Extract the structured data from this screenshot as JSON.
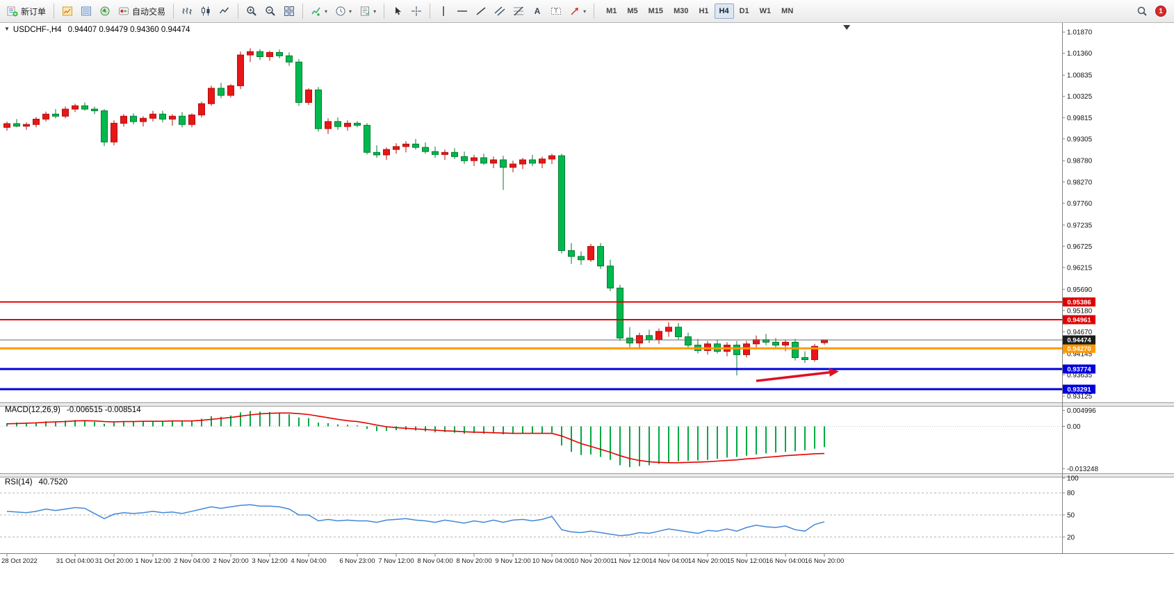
{
  "toolbar": {
    "new_order_label": "新订单",
    "auto_trading_label": "自动交易",
    "timeframes": [
      "M1",
      "M5",
      "M15",
      "M30",
      "H1",
      "H4",
      "D1",
      "W1",
      "MN"
    ],
    "active_timeframe": "H4",
    "notification_badge": "1"
  },
  "chart": {
    "symbol_title": "USDCHF-,H4",
    "ohlc_text": "0.94407 0.94479 0.94360 0.94474",
    "macd_name": "MACD(12,26,9)",
    "macd_values": "-0.006515 -0.008514",
    "rsi_name": "RSI(14)",
    "rsi_value": "40.7520"
  },
  "chart_data": {
    "type": "candlestick",
    "symbol": "USDCHF-",
    "timeframe": "H4",
    "legend_position": "top-left",
    "grid": false,
    "colors": {
      "bull": "#e81717",
      "bull_border": "#b30d0d",
      "bear": "#00b94e",
      "bear_border": "#007a30",
      "macd_hist": "#00a843",
      "macd_signal": "#e60000",
      "rsi_line": "#4187d6",
      "hline_red": "#e00000",
      "hline_orange": "#ff9900",
      "hline_blue": "#0000dd",
      "price_line": "#666666",
      "arrow": "#e01020"
    },
    "price_range": {
      "top": 1.0204,
      "bottom": 0.9299
    },
    "price_axis_labels": [
      "1.01870",
      "1.01360",
      "1.00835",
      "1.00325",
      "0.99815",
      "0.99305",
      "0.98780",
      "0.98270",
      "0.97760",
      "0.97235",
      "0.96725",
      "0.96215",
      "0.95690",
      "0.95180",
      "0.94670",
      "0.94145",
      "0.93635",
      "0.93125"
    ],
    "candles_ohlc": [
      [
        0.9958,
        0.9972,
        0.995,
        0.9967
      ],
      [
        0.9967,
        0.9978,
        0.9958,
        0.9961
      ],
      [
        0.9961,
        0.997,
        0.9952,
        0.9965
      ],
      [
        0.9965,
        0.9983,
        0.9958,
        0.9978
      ],
      [
        0.9978,
        0.9996,
        0.9972,
        0.999
      ],
      [
        0.999,
        1.0002,
        0.998,
        0.9985
      ],
      [
        0.9985,
        1.0008,
        0.998,
        1.0002
      ],
      [
        1.0002,
        1.0015,
        0.9995,
        1.001
      ],
      [
        1.001,
        1.0018,
        0.9998,
        1.0002
      ],
      [
        1.0002,
        1.0008,
        0.999,
        0.9998
      ],
      [
        0.9998,
        1.0002,
        0.9913,
        0.9923
      ],
      [
        0.9923,
        0.9975,
        0.9915,
        0.9968
      ],
      [
        0.9968,
        0.999,
        0.996,
        0.9985
      ],
      [
        0.9985,
        0.9992,
        0.9965,
        0.9972
      ],
      [
        0.9972,
        0.9985,
        0.996,
        0.998
      ],
      [
        0.998,
        0.9998,
        0.9972,
        0.999
      ],
      [
        0.999,
        0.9998,
        0.997,
        0.9978
      ],
      [
        0.9978,
        0.999,
        0.9962,
        0.9985
      ],
      [
        0.9985,
        0.9995,
        0.9958,
        0.9965
      ],
      [
        0.9965,
        0.9992,
        0.9958,
        0.9988
      ],
      [
        0.9988,
        1.002,
        0.9982,
        1.0015
      ],
      [
        1.0015,
        1.0058,
        1.001,
        1.0052
      ],
      [
        1.0052,
        1.0065,
        1.0028,
        1.0035
      ],
      [
        1.0035,
        1.0062,
        1.003,
        1.0058
      ],
      [
        1.0058,
        1.014,
        1.005,
        1.0132
      ],
      [
        1.0132,
        1.0148,
        1.0115,
        1.014
      ],
      [
        1.014,
        1.0146,
        1.012,
        1.0128
      ],
      [
        1.0128,
        1.0142,
        1.0118,
        1.0138
      ],
      [
        1.0138,
        1.0145,
        1.0124,
        1.013
      ],
      [
        1.013,
        1.0138,
        1.0106,
        1.0115
      ],
      [
        1.0115,
        1.0122,
        1.001,
        1.0018
      ],
      [
        1.0018,
        1.0052,
        1.0012,
        1.0048
      ],
      [
        1.0048,
        1.0055,
        0.9948,
        0.9955
      ],
      [
        0.9955,
        0.998,
        0.9942,
        0.9972
      ],
      [
        0.9972,
        0.9982,
        0.9952,
        0.996
      ],
      [
        0.996,
        0.9975,
        0.995,
        0.9968
      ],
      [
        0.9968,
        0.9973,
        0.9958,
        0.9963
      ],
      [
        0.9963,
        0.9968,
        0.9893,
        0.9898
      ],
      [
        0.9898,
        0.9915,
        0.9885,
        0.9892
      ],
      [
        0.9892,
        0.991,
        0.988,
        0.9905
      ],
      [
        0.9905,
        0.992,
        0.9895,
        0.9912
      ],
      [
        0.9912,
        0.9925,
        0.9898,
        0.9918
      ],
      [
        0.9918,
        0.993,
        0.9905,
        0.991
      ],
      [
        0.991,
        0.9922,
        0.9895,
        0.99
      ],
      [
        0.99,
        0.9912,
        0.9885,
        0.9893
      ],
      [
        0.9893,
        0.9905,
        0.988,
        0.9898
      ],
      [
        0.9898,
        0.9908,
        0.9882,
        0.9888
      ],
      [
        0.9888,
        0.99,
        0.987,
        0.9878
      ],
      [
        0.9878,
        0.9892,
        0.9865,
        0.9885
      ],
      [
        0.9885,
        0.9895,
        0.9868,
        0.9872
      ],
      [
        0.9872,
        0.9888,
        0.986,
        0.988
      ],
      [
        0.988,
        0.989,
        0.9808,
        0.9862
      ],
      [
        0.9862,
        0.9878,
        0.985,
        0.987
      ],
      [
        0.987,
        0.9885,
        0.9858,
        0.988
      ],
      [
        0.988,
        0.9892,
        0.9865,
        0.9872
      ],
      [
        0.9872,
        0.9888,
        0.986,
        0.9882
      ],
      [
        0.9882,
        0.9895,
        0.987,
        0.989
      ],
      [
        0.989,
        0.9895,
        0.9655,
        0.9662
      ],
      [
        0.9662,
        0.968,
        0.963,
        0.9648
      ],
      [
        0.9648,
        0.966,
        0.9628,
        0.964
      ],
      [
        0.964,
        0.9678,
        0.9635,
        0.9672
      ],
      [
        0.9672,
        0.968,
        0.9618,
        0.9625
      ],
      [
        0.9625,
        0.964,
        0.9565,
        0.9572
      ],
      [
        0.9572,
        0.958,
        0.9445,
        0.9452
      ],
      [
        0.9452,
        0.9478,
        0.943,
        0.944
      ],
      [
        0.944,
        0.9465,
        0.9425,
        0.9458
      ],
      [
        0.9458,
        0.9472,
        0.944,
        0.9448
      ],
      [
        0.9448,
        0.9475,
        0.9438,
        0.9468
      ],
      [
        0.9468,
        0.949,
        0.9455,
        0.9478
      ],
      [
        0.9478,
        0.9488,
        0.9448,
        0.9455
      ],
      [
        0.9455,
        0.9465,
        0.9428,
        0.9435
      ],
      [
        0.9435,
        0.945,
        0.9415,
        0.9422
      ],
      [
        0.9422,
        0.9445,
        0.9412,
        0.9438
      ],
      [
        0.9438,
        0.9448,
        0.9415,
        0.942
      ],
      [
        0.942,
        0.9442,
        0.9408,
        0.9435
      ],
      [
        0.9435,
        0.9445,
        0.9362,
        0.9412
      ],
      [
        0.9412,
        0.9445,
        0.9405,
        0.9438
      ],
      [
        0.9438,
        0.9458,
        0.9425,
        0.9448
      ],
      [
        0.9448,
        0.9462,
        0.9435,
        0.9442
      ],
      [
        0.9442,
        0.9452,
        0.9428,
        0.9435
      ],
      [
        0.9435,
        0.9448,
        0.942,
        0.9442
      ],
      [
        0.9442,
        0.945,
        0.9398,
        0.9405
      ],
      [
        0.9405,
        0.942,
        0.9392,
        0.94
      ],
      [
        0.94,
        0.9438,
        0.9395,
        0.9432
      ],
      [
        0.94407,
        0.94479,
        0.9436,
        0.94474
      ]
    ],
    "time_labels": [
      [
        0,
        "28 Oct 2022"
      ],
      [
        7,
        "31 Oct 04:00"
      ],
      [
        11,
        "31 Oct 20:00"
      ],
      [
        15,
        "1 Nov 12:00"
      ],
      [
        19,
        "2 Nov 04:00"
      ],
      [
        23,
        "2 Nov 20:00"
      ],
      [
        27,
        "3 Nov 12:00"
      ],
      [
        31,
        "4 Nov 04:00"
      ],
      [
        36,
        "6 Nov 23:00"
      ],
      [
        40,
        "7 Nov 12:00"
      ],
      [
        44,
        "8 Nov 04:00"
      ],
      [
        48,
        "8 Nov 20:00"
      ],
      [
        52,
        "9 Nov 12:00"
      ],
      [
        56,
        "10 Nov 04:00"
      ],
      [
        60,
        "10 Nov 20:00"
      ],
      [
        64,
        "11 Nov 12:00"
      ],
      [
        68,
        "14 Nov 04:00"
      ],
      [
        72,
        "14 Nov 20:00"
      ],
      [
        76,
        "15 Nov 12:00"
      ],
      [
        80,
        "16 Nov 04:00"
      ],
      [
        84,
        "16 Nov 20:00"
      ]
    ],
    "hlines": [
      {
        "price": 0.95386,
        "label": "0.95386",
        "color": "#e00000",
        "width": 2
      },
      {
        "price": 0.94961,
        "label": "0.94961",
        "color": "#e00000",
        "width": 2
      },
      {
        "price": 0.9427,
        "label": "0.94270",
        "color": "#ff9900",
        "width": 3
      },
      {
        "price": 0.93774,
        "label": "0.93774",
        "color": "#0000dd",
        "width": 3
      },
      {
        "price": 0.93291,
        "label": "0.93291",
        "color": "#0000dd",
        "width": 3
      }
    ],
    "current_price": {
      "price": 0.94474,
      "label": "0.94474"
    },
    "macd": {
      "name": "MACD(12,26,9)",
      "values_text": "-0.006515 -0.008514",
      "range": {
        "max": 0.006,
        "min": -0.0145
      },
      "axis": [
        {
          "v": 0.004996,
          "label": "0.004996"
        },
        {
          "v": 0,
          "label": "0.00"
        },
        {
          "v": -0.013248,
          "label": "-0.013248"
        }
      ],
      "histogram": [
        0.001,
        0.0012,
        0.0011,
        0.0013,
        0.0016,
        0.0015,
        0.0018,
        0.002,
        0.0019,
        0.0014,
        0.0008,
        0.0012,
        0.0015,
        0.0016,
        0.0015,
        0.0017,
        0.0016,
        0.0017,
        0.0015,
        0.0018,
        0.0024,
        0.0032,
        0.003,
        0.0034,
        0.0044,
        0.0048,
        0.0046,
        0.0045,
        0.0043,
        0.0038,
        0.0028,
        0.0026,
        0.0012,
        0.001,
        0.0006,
        0.0005,
        0.0003,
        -0.0008,
        -0.0015,
        -0.0014,
        -0.0012,
        -0.0011,
        -0.0013,
        -0.0016,
        -0.0019,
        -0.0018,
        -0.002,
        -0.0023,
        -0.0021,
        -0.0023,
        -0.0022,
        -0.0025,
        -0.0024,
        -0.0022,
        -0.0023,
        -0.0022,
        -0.002,
        -0.006,
        -0.008,
        -0.009,
        -0.0088,
        -0.0096,
        -0.0105,
        -0.0122,
        -0.0128,
        -0.0125,
        -0.0122,
        -0.0118,
        -0.0112,
        -0.011,
        -0.0108,
        -0.0107,
        -0.0105,
        -0.0102,
        -0.0098,
        -0.0096,
        -0.0092,
        -0.0088,
        -0.0085,
        -0.0082,
        -0.008,
        -0.0078,
        -0.0075,
        -0.007,
        -0.006515
      ],
      "signal": [
        0.0008,
        0.0009,
        0.001,
        0.0011,
        0.0013,
        0.0014,
        0.0015,
        0.0017,
        0.0018,
        0.0017,
        0.0015,
        0.0014,
        0.0015,
        0.0015,
        0.0016,
        0.0016,
        0.0016,
        0.0017,
        0.0017,
        0.0017,
        0.0019,
        0.0022,
        0.0025,
        0.0028,
        0.0032,
        0.0036,
        0.0039,
        0.0041,
        0.0042,
        0.0042,
        0.004,
        0.0037,
        0.0032,
        0.0027,
        0.0022,
        0.0018,
        0.0015,
        0.001,
        0.0004,
        -0.0001,
        -0.0004,
        -0.0006,
        -0.0008,
        -0.001,
        -0.0012,
        -0.0014,
        -0.0015,
        -0.0017,
        -0.0018,
        -0.0019,
        -0.002,
        -0.0021,
        -0.0022,
        -0.0022,
        -0.0022,
        -0.0022,
        -0.0022,
        -0.003,
        -0.0042,
        -0.0054,
        -0.0063,
        -0.0072,
        -0.0081,
        -0.0092,
        -0.0101,
        -0.0107,
        -0.0111,
        -0.0113,
        -0.0114,
        -0.0114,
        -0.0113,
        -0.0112,
        -0.0111,
        -0.0109,
        -0.0107,
        -0.0105,
        -0.0102,
        -0.01,
        -0.0097,
        -0.0095,
        -0.0092,
        -0.009,
        -0.0088,
        -0.0086,
        -0.008514
      ]
    },
    "rsi": {
      "name": "RSI(14)",
      "value_text": "40.7520",
      "range": {
        "max": 100,
        "min": 0
      },
      "levels": [
        80,
        50,
        20
      ],
      "axis": [
        {
          "v": 100,
          "label": "100"
        },
        {
          "v": 80,
          "label": "80"
        },
        {
          "v": 50,
          "label": "50"
        },
        {
          "v": 20,
          "label": "20"
        }
      ],
      "values": [
        55,
        54,
        53,
        55,
        58,
        56,
        58,
        60,
        59,
        52,
        45,
        51,
        53,
        52,
        53,
        55,
        53,
        54,
        52,
        55,
        58,
        61,
        59,
        61,
        63,
        64,
        62,
        62,
        61,
        58,
        50,
        50,
        42,
        44,
        42,
        43,
        42,
        42,
        40,
        43,
        44,
        45,
        43,
        42,
        40,
        43,
        41,
        39,
        42,
        40,
        43,
        40,
        43,
        44,
        42,
        44,
        48,
        30,
        27,
        26,
        28,
        26,
        24,
        22,
        23,
        26,
        25,
        28,
        31,
        29,
        27,
        25,
        29,
        28,
        31,
        28,
        33,
        36,
        34,
        33,
        35,
        30,
        28,
        37,
        40.75
      ]
    },
    "annotations": {
      "trend_arrow": {
        "from_index": 77,
        "from_price": 0.9349,
        "to_index": 85.5,
        "to_price": 0.9372
      },
      "shift_marker_index": 86.3
    }
  }
}
